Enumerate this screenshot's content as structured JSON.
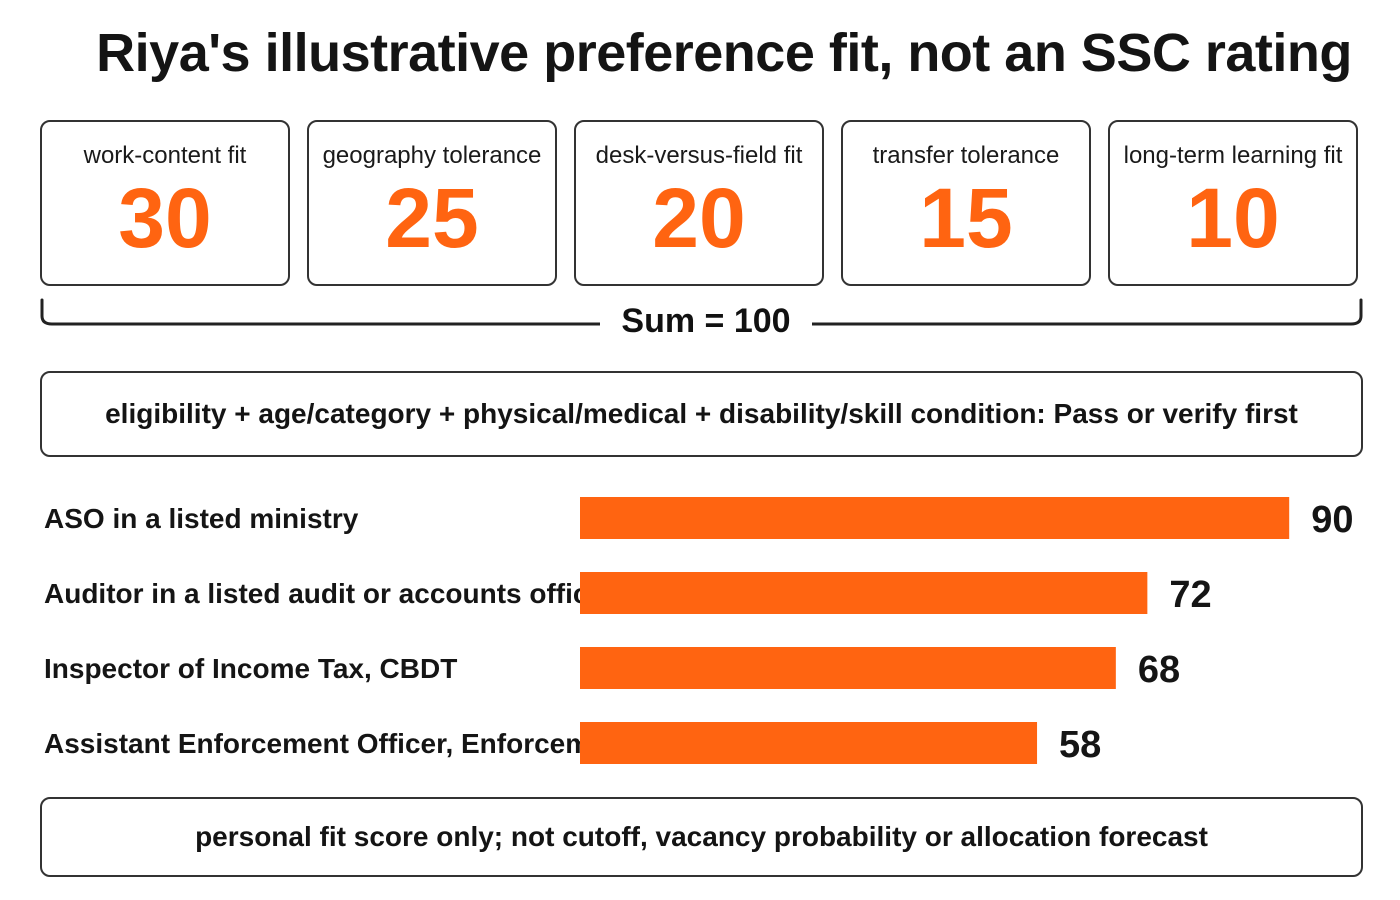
{
  "title": "Riya's illustrative preference fit, not an SSC rating",
  "weights": [
    {
      "label": "work-content fit",
      "value": "30"
    },
    {
      "label": "geography tolerance",
      "value": "25"
    },
    {
      "label": "desk-versus-field fit",
      "value": "20"
    },
    {
      "label": "transfer tolerance",
      "value": "15"
    },
    {
      "label": "long-term learning fit",
      "value": "10"
    }
  ],
  "sum_label": "Sum = 100",
  "eligibility_rule": "eligibility + age/category + physical/medical + disability/skill condition: Pass or verify first",
  "footnote": "personal fit score only; not cutoff, vacancy probability or allocation forecast",
  "colors": {
    "accent": "#ff6411",
    "border": "#333333",
    "text": "#141414"
  },
  "chart_data": {
    "type": "bar",
    "orientation": "horizontal",
    "categories": [
      "ASO in a listed ministry",
      "Auditor in a listed audit or accounts office",
      "Inspector of Income Tax, CBDT",
      "Assistant Enforcement Officer, Enforcement Directorate"
    ],
    "values": [
      90,
      72,
      68,
      58
    ],
    "xlim": [
      0,
      100
    ],
    "grid": false,
    "legend": "none",
    "data_labels": true,
    "bar_color": "#ff6411"
  }
}
